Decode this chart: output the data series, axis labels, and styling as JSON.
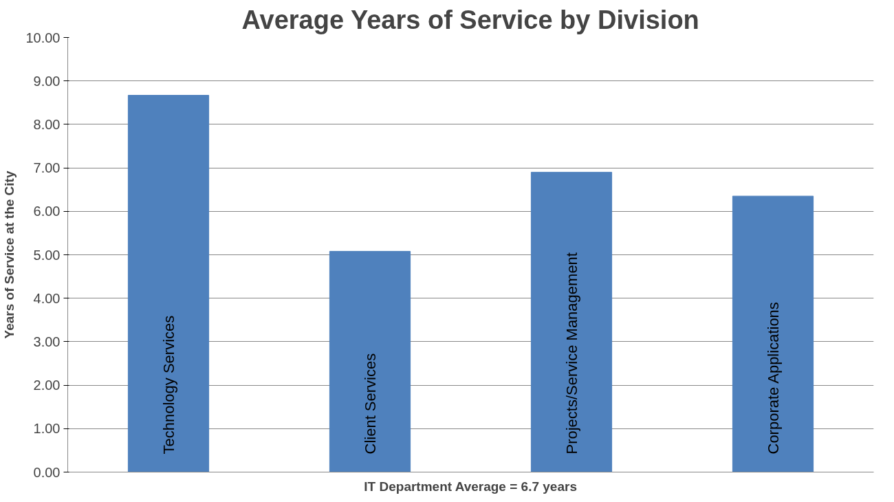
{
  "chart_data": {
    "type": "bar",
    "title": "Average Years of Service by Division",
    "xlabel": "IT Department Average = 6.7 years",
    "ylabel": "Years of Service at the City",
    "categories": [
      "Technology Services",
      "Client Services",
      "Projects/Service Management",
      "Corporate Applications"
    ],
    "values": [
      8.67,
      5.08,
      6.9,
      6.35
    ],
    "color": "#4f81bd",
    "ylim": [
      0,
      10
    ],
    "yticks": [
      {
        "value": 0,
        "label": "0.00"
      },
      {
        "value": 1,
        "label": "1.00"
      },
      {
        "value": 2,
        "label": "2.00"
      },
      {
        "value": 3,
        "label": "3.00"
      },
      {
        "value": 4,
        "label": "4.00"
      },
      {
        "value": 5,
        "label": "5.00"
      },
      {
        "value": 6,
        "label": "6.00"
      },
      {
        "value": 7,
        "label": "7.00"
      },
      {
        "value": 8,
        "label": "8.00"
      },
      {
        "value": 9,
        "label": "9.00"
      },
      {
        "value": 10,
        "label": "10.00"
      }
    ],
    "grid": "y",
    "tick_labels": "y"
  }
}
